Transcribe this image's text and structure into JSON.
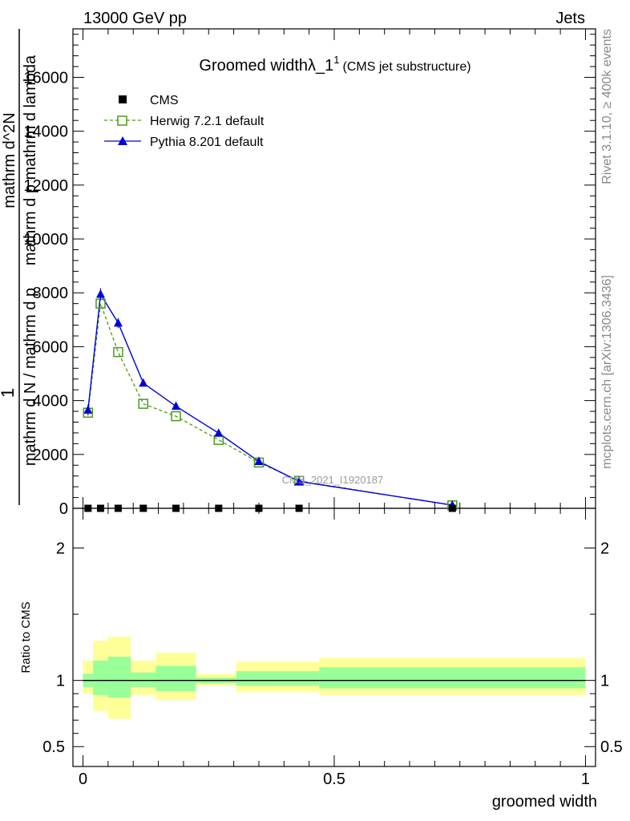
{
  "header": {
    "left": "13000 GeV pp",
    "right": "Jets"
  },
  "side_labels": {
    "rivet": "Rivet 3.1.10, ≥ 400k events",
    "mcplots": "mcplots.cern.ch [arXiv:1306.3436]"
  },
  "chart_data": [
    {
      "type": "line",
      "title_main": "Groomed width",
      "title_lambda": "λ_1",
      "title_sup": "1",
      "title_sub": "(CMS jet substructure)",
      "ylabel_lines": [
        "1",
        "mathrm d N / mathrm d p",
        "mathrm d^2N",
        "mathrm d p mathrm d lambda"
      ],
      "watermark": "CMS_2021_I1920187",
      "xlim": [
        -0.02,
        1.02
      ],
      "ylim": [
        0,
        17800
      ],
      "y_ticks": [
        0,
        2000,
        4000,
        6000,
        8000,
        10000,
        12000,
        14000,
        16000
      ],
      "legend": {
        "position": "top-left",
        "entries": [
          {
            "name": "CMS",
            "marker": "square-filled",
            "color": "#000000"
          },
          {
            "name": "Herwig 7.2.1 default",
            "marker": "square-open",
            "color": "#4a9a1a"
          },
          {
            "name": "Pythia 8.201 default",
            "marker": "triangle-filled",
            "color": "#0000dd"
          }
        ]
      },
      "series": [
        {
          "name": "CMS",
          "x": [
            0.01,
            0.035,
            0.07,
            0.12,
            0.185,
            0.27,
            0.35,
            0.43,
            0.735
          ],
          "y": [
            0,
            0,
            0,
            0,
            0,
            0,
            0,
            0,
            0
          ]
        },
        {
          "name": "Herwig 7.2.1 default",
          "x": [
            0.01,
            0.035,
            0.07,
            0.12,
            0.185,
            0.27,
            0.35,
            0.43,
            0.735
          ],
          "y": [
            3550,
            7600,
            5800,
            3880,
            3420,
            2540,
            1700,
            1020,
            110
          ]
        },
        {
          "name": "Pythia 8.201 default",
          "x": [
            0.01,
            0.035,
            0.07,
            0.12,
            0.185,
            0.27,
            0.35,
            0.43,
            0.735
          ],
          "y": [
            3650,
            7950,
            6880,
            4650,
            3790,
            2790,
            1740,
            1000,
            120
          ],
          "yerr": [
            200,
            220,
            180,
            80,
            60,
            50,
            40,
            30,
            10
          ]
        }
      ]
    },
    {
      "type": "area",
      "ylabel": "Ratio to CMS",
      "xlabel": "groomed width",
      "xlim": [
        -0.02,
        1.02
      ],
      "ylim": [
        0.35,
        2.3
      ],
      "y_ticks": [
        0.5,
        1,
        2
      ],
      "y_tick_labels": [
        "0.5",
        "1",
        "2"
      ],
      "x_ticks": [
        0,
        0.5,
        1
      ],
      "x_tick_labels": [
        "0",
        "0.5",
        "1"
      ],
      "reference": 1,
      "bands": [
        {
          "x0": 0.0,
          "x1": 0.02,
          "inner": [
            0.95,
            1.05
          ],
          "outer": [
            0.9,
            1.15
          ]
        },
        {
          "x0": 0.02,
          "x1": 0.05,
          "inner": [
            0.89,
            1.15
          ],
          "outer": [
            0.77,
            1.3
          ]
        },
        {
          "x0": 0.05,
          "x1": 0.095,
          "inner": [
            0.87,
            1.18
          ],
          "outer": [
            0.71,
            1.33
          ]
        },
        {
          "x0": 0.095,
          "x1": 0.145,
          "inner": [
            0.95,
            1.06
          ],
          "outer": [
            0.89,
            1.15
          ]
        },
        {
          "x0": 0.145,
          "x1": 0.225,
          "inner": [
            0.92,
            1.11
          ],
          "outer": [
            0.85,
            1.21
          ]
        },
        {
          "x0": 0.225,
          "x1": 0.305,
          "inner": [
            0.98,
            1.02
          ],
          "outer": [
            0.96,
            1.05
          ]
        },
        {
          "x0": 0.305,
          "x1": 0.39,
          "inner": [
            0.96,
            1.07
          ],
          "outer": [
            0.91,
            1.14
          ]
        },
        {
          "x0": 0.39,
          "x1": 0.47,
          "inner": [
            0.96,
            1.07
          ],
          "outer": [
            0.91,
            1.14
          ]
        },
        {
          "x0": 0.47,
          "x1": 1.0,
          "inner": [
            0.94,
            1.1
          ],
          "outer": [
            0.89,
            1.17
          ]
        }
      ]
    }
  ]
}
